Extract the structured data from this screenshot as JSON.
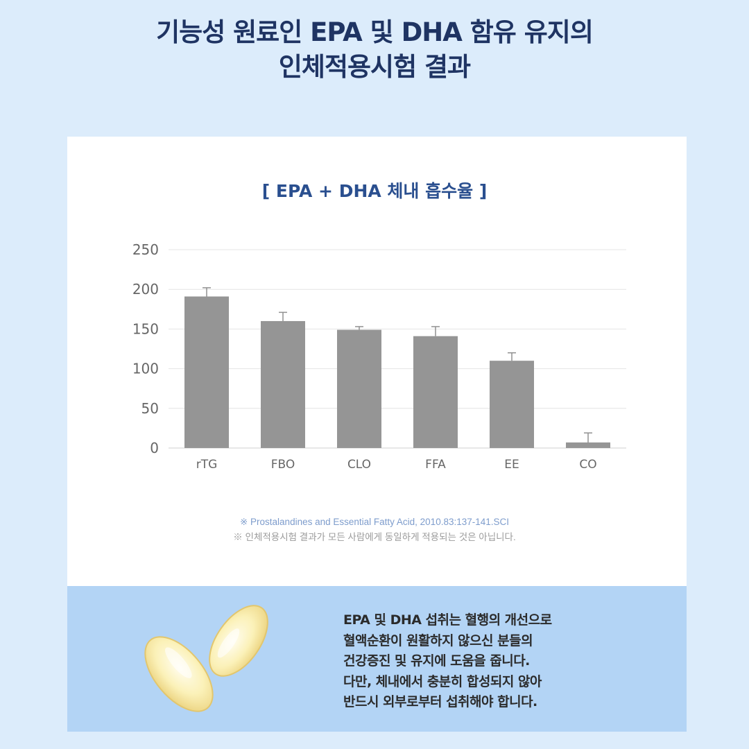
{
  "page": {
    "title_line1": "기능성 원료인 EPA 및 DHA 함유 유지의",
    "title_line2": "인체적용시험 결과"
  },
  "chart_data": {
    "type": "bar",
    "title": "[ EPA + DHA 체내 흡수율 ]",
    "categories": [
      "rTG",
      "FBO",
      "CLO",
      "FFA",
      "EE",
      "CO"
    ],
    "values": [
      191,
      160,
      149,
      141,
      110,
      7
    ],
    "error_high": [
      202,
      171,
      153,
      153,
      120,
      19
    ],
    "ylim": [
      0,
      250
    ],
    "yticks": [
      "0",
      "50",
      "100",
      "150",
      "200",
      "250"
    ],
    "grid": true,
    "bar_color": "#959595",
    "error_color": "#909090"
  },
  "notes": {
    "line1": "※ Prostalandines and Essential Fatty Acid, 2010.83:137-141.SCI",
    "line2": "※ 인체적용시험 결과가 모든 사람에게 동일하게 적용되는 것은 아닙니다."
  },
  "info": {
    "lines": [
      "EPA 및 DHA 섭취는 혈행의 개선으로",
      "혈액순환이 원활하지 않으신 분들의",
      "건강증진 및 유지에 도움을 줍니다.",
      "다만, 체내에서 충분히 합성되지 않아",
      "반드시 외부로부터 섭취해야 합니다."
    ]
  },
  "colors": {
    "background": "#dcecfb",
    "panel": "#b3d4f5",
    "title": "#1f3463",
    "chart_title": "#2a4f8f"
  },
  "icons": {
    "capsules": "omega-3-capsules-icon"
  }
}
